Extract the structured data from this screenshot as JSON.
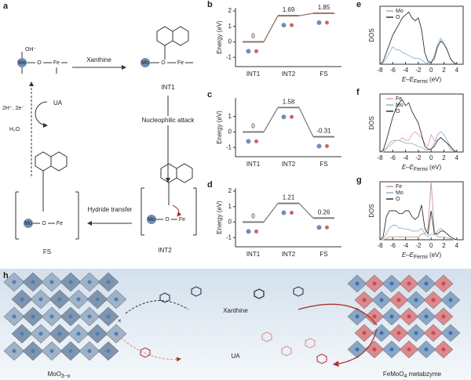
{
  "chart_data": [
    {
      "type": "step",
      "label": "b",
      "ylabel": "Energy (eV)",
      "categories": [
        "INT1",
        "INT2",
        "FS"
      ],
      "values": [
        0,
        1.69,
        1.85
      ],
      "color": "#8a6a58",
      "ylim": [
        -1.6,
        2.2
      ],
      "yticks": [
        -1,
        0,
        1,
        2
      ]
    },
    {
      "type": "step",
      "label": "c",
      "ylabel": "Energy (eV)",
      "categories": [
        "INT1",
        "INT2",
        "FS"
      ],
      "values": [
        0,
        1.58,
        -0.31
      ],
      "color": "#777777",
      "ylim": [
        -1.6,
        2.2
      ],
      "yticks": [
        -1,
        0,
        1
      ]
    },
    {
      "type": "step",
      "label": "d",
      "ylabel": "Energy (eV)",
      "categories": [
        "INT1",
        "INT2",
        "FS"
      ],
      "values": [
        0,
        1.21,
        0.26
      ],
      "color": "#777777",
      "ylim": [
        -1.6,
        2.2
      ],
      "yticks": [
        -1,
        0,
        1,
        2
      ]
    },
    {
      "type": "line",
      "label": "e",
      "ylabel": "DOS",
      "xlabel": "E–E",
      "xlabel_sub": "Fermi",
      "xlabel_unit": " (eV)",
      "legend": "upper left",
      "xlim": [
        -8,
        5
      ],
      "xticks": [
        -8,
        -6,
        -4,
        -2,
        0,
        2,
        4
      ],
      "ylim": [
        0,
        10
      ],
      "x": [
        -8,
        -7.5,
        -7,
        -6.5,
        -6,
        -5.5,
        -5,
        -4.5,
        -4,
        -3.5,
        -3,
        -2.5,
        -2,
        -1.5,
        -1,
        -0.5,
        0,
        0.5,
        1,
        1.5,
        2,
        2.5,
        3,
        3.5,
        4
      ],
      "series": [
        {
          "name": "Mo",
          "color": "#8fb3d0",
          "values": [
            0,
            0.2,
            1,
            2,
            3,
            2.5,
            2.5,
            2,
            1.8,
            1.5,
            1.2,
            1,
            1,
            0.8,
            0.3,
            0.2,
            0.3,
            1.5,
            3.5,
            4.5,
            3.5,
            2.5,
            1,
            0.3,
            0
          ]
        },
        {
          "name": "O",
          "color": "#333333",
          "values": [
            0,
            0.5,
            2,
            3.5,
            5,
            6,
            7,
            8,
            8.5,
            9,
            8,
            7.5,
            8,
            6,
            2,
            0.5,
            0.3,
            1,
            3,
            4,
            3.5,
            2.5,
            1,
            0.3,
            0
          ]
        }
      ]
    },
    {
      "type": "line",
      "label": "f",
      "ylabel": "DOS",
      "xlabel": "E–E",
      "xlabel_sub": "Fermi",
      "xlabel_unit": " (eV)",
      "legend": "upper left",
      "xlim": [
        -8,
        5
      ],
      "xticks": [
        -8,
        -6,
        -4,
        -2,
        0,
        2,
        4
      ],
      "ylim": [
        0,
        10
      ],
      "x": [
        -8,
        -7.5,
        -7,
        -6.5,
        -6,
        -5.5,
        -5,
        -4.5,
        -4,
        -3.5,
        -3,
        -2.5,
        -2,
        -1.5,
        -1,
        -0.5,
        0,
        0.5,
        1,
        1.5,
        2,
        2.5,
        3,
        3.5,
        4
      ],
      "series": [
        {
          "name": "Fe",
          "color": "#e8a0a8",
          "values": [
            0,
            0,
            0.5,
            1,
            1.5,
            2,
            2,
            2.5,
            2,
            2,
            3,
            3.5,
            3,
            2.5,
            1.5,
            1,
            3,
            2,
            2,
            2.5,
            2,
            1.5,
            0.5,
            0.2,
            0
          ]
        },
        {
          "name": "Mo",
          "color": "#8fb3d0",
          "values": [
            0,
            0.2,
            0.8,
            1.5,
            2,
            2,
            2,
            1.8,
            1.5,
            1.5,
            1.5,
            1.2,
            1,
            0.8,
            0.5,
            0.3,
            0.5,
            1.5,
            3,
            3.5,
            3,
            2,
            1,
            0.3,
            0
          ]
        },
        {
          "name": "O",
          "color": "#333333",
          "values": [
            0,
            0.3,
            2,
            4,
            6,
            7.5,
            8.5,
            9,
            8,
            8.5,
            7,
            6,
            5,
            3,
            1,
            0.5,
            0.5,
            1,
            2,
            2.5,
            2,
            1.5,
            1,
            0.3,
            0
          ]
        }
      ]
    },
    {
      "type": "line",
      "label": "g",
      "ylabel": "DOS",
      "xlabel": "E–E",
      "xlabel_sub": "Fermi",
      "xlabel_unit": " (eV)",
      "legend": "upper left",
      "xlim": [
        -8,
        5
      ],
      "xticks": [
        -8,
        -6,
        -4,
        -2,
        0,
        2,
        4
      ],
      "ylim": [
        0,
        10
      ],
      "x": [
        -8,
        -7.5,
        -7,
        -6.5,
        -6,
        -5.5,
        -5,
        -4.5,
        -4,
        -3.5,
        -3,
        -2.5,
        -2,
        -1.5,
        -1,
        -0.5,
        0,
        0.5,
        1,
        1.5,
        2,
        2.5,
        3,
        3.5,
        4
      ],
      "series": [
        {
          "name": "Fe",
          "color": "#c29a8e",
          "values": [
            0,
            0,
            0.2,
            0.5,
            0.5,
            0.5,
            0.5,
            0.5,
            0.5,
            0.5,
            0.5,
            0.5,
            0.5,
            1,
            1,
            2,
            10,
            1.5,
            0.5,
            0.5,
            0.5,
            0.3,
            0.2,
            0,
            0
          ]
        },
        {
          "name": "Mo",
          "color": "#8fb3d0",
          "values": [
            0,
            0.2,
            1,
            2,
            2.5,
            2.5,
            2,
            2,
            1.8,
            1.8,
            1.5,
            1.5,
            1.5,
            2,
            1,
            0.5,
            1,
            0.8,
            1.5,
            2,
            1.5,
            1,
            0.5,
            0.2,
            0
          ]
        },
        {
          "name": "O",
          "color": "#333333",
          "values": [
            0,
            0.5,
            4,
            5,
            5,
            5,
            4.5,
            4.5,
            5,
            5,
            4,
            3.5,
            4,
            6,
            2,
            1,
            5,
            1,
            1,
            1.5,
            1.5,
            1,
            0.5,
            0.2,
            0
          ]
        }
      ]
    }
  ],
  "scheme": {
    "label": "a",
    "reactant": "Xanthine",
    "int1": "INT1",
    "step1": "Nucleophilic attack",
    "int2": "INT2",
    "step2": "Hydride transfer",
    "fs": "FS",
    "product": "UA",
    "cofactor": "2H⁺, 2e⁻",
    "water": "H₂O",
    "mo": "Mo",
    "fe": "Fe",
    "o": "O",
    "oh": "OH⁻"
  },
  "illustration": {
    "label": "h",
    "reactant": "Xanthine",
    "product": "UA",
    "left_material": "MoO",
    "left_sub": "3−x",
    "right_material": "FeMoO",
    "right_sub": "4",
    "right_suffix": " metabzyme"
  }
}
